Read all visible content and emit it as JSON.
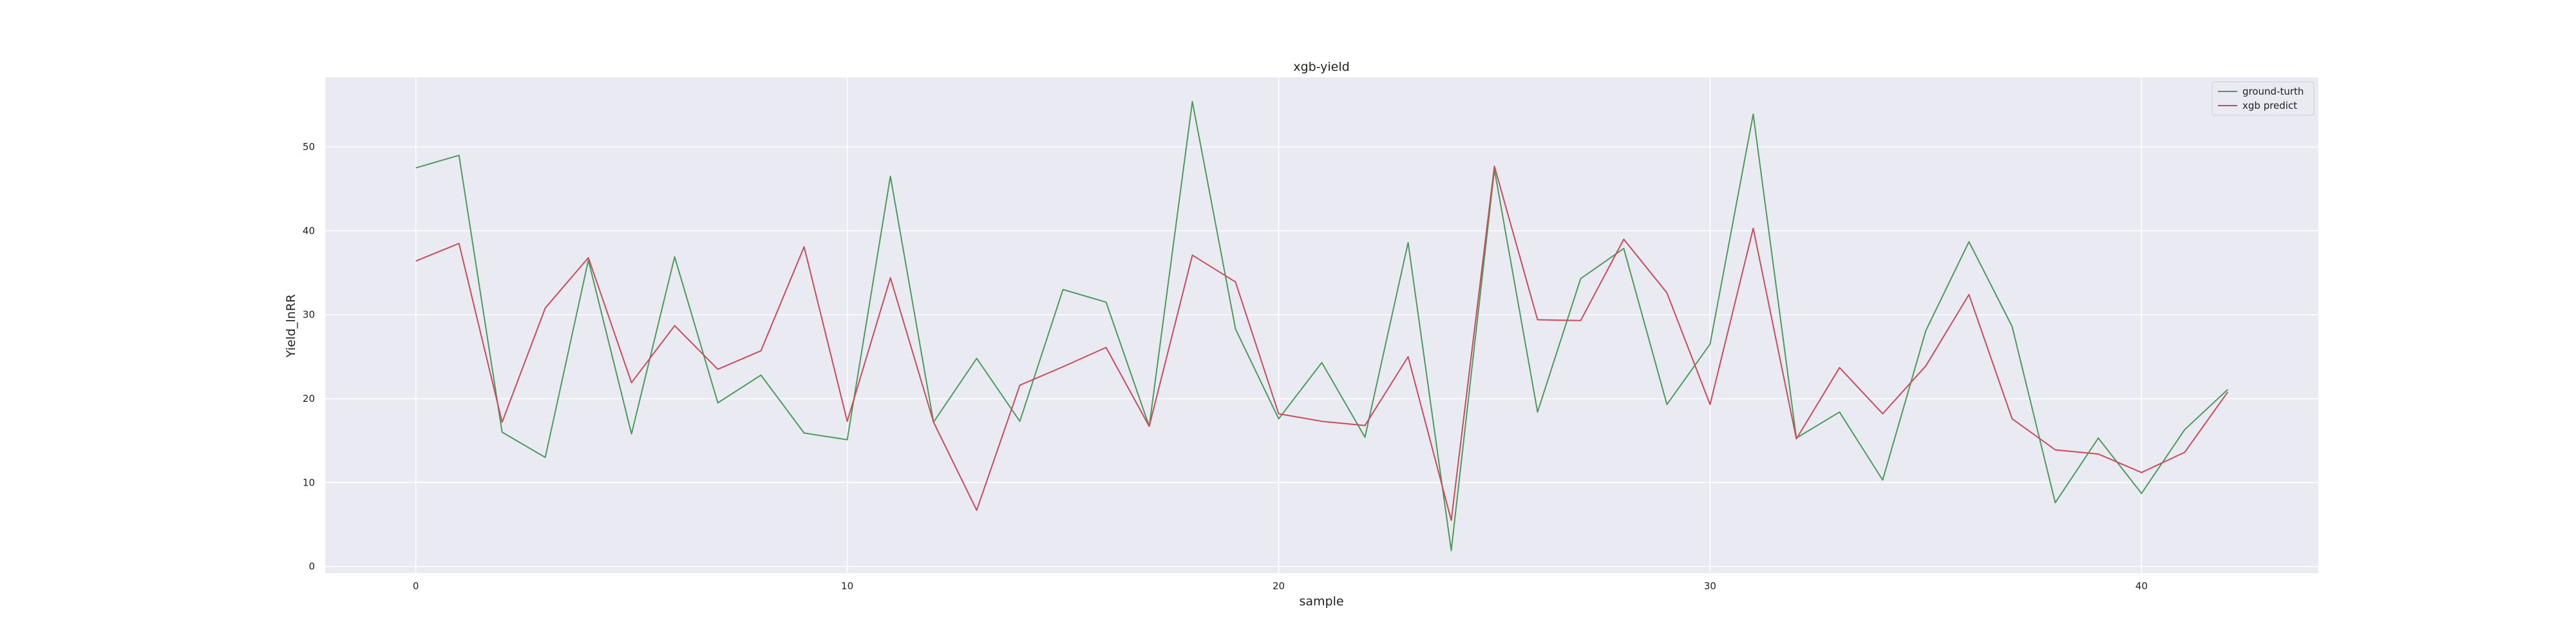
{
  "chart_data": {
    "type": "line",
    "title": "xgb-yield",
    "xlabel": "sample",
    "ylabel": "Yield_lnRR",
    "xlim": [
      -2.1,
      44.1
    ],
    "ylim": [
      -0.8,
      58.3
    ],
    "xticks": [
      0,
      10,
      20,
      30,
      40
    ],
    "yticks": [
      0,
      10,
      20,
      30,
      40,
      50
    ],
    "grid": true,
    "legend_position": "top-right",
    "x": [
      0,
      1,
      2,
      3,
      4,
      5,
      6,
      7,
      8,
      9,
      10,
      11,
      12,
      13,
      14,
      15,
      16,
      17,
      18,
      19,
      20,
      21,
      22,
      23,
      24,
      25,
      26,
      27,
      28,
      29,
      30,
      31,
      32,
      33,
      34,
      35,
      36,
      37,
      38,
      39,
      40,
      41,
      42
    ],
    "series": [
      {
        "name": "ground-turth",
        "color": "#4c9a5c",
        "values": [
          47.5,
          49,
          16,
          13,
          36.5,
          15.8,
          36.9,
          19.5,
          22.8,
          15.9,
          15.1,
          46.5,
          17.2,
          24.8,
          17.3,
          33,
          31.5,
          16.7,
          55.4,
          28.3,
          17.6,
          24.3,
          15.4,
          38.6,
          1.9,
          47.3,
          18.4,
          34.3,
          37.9,
          19.3,
          26.5,
          53.9,
          15.3,
          18.4,
          10.3,
          28.1,
          38.7,
          28.6,
          7.6,
          15.3,
          8.7,
          16.3,
          21.1
        ]
      },
      {
        "name": "xgb predict",
        "color": "#c84b5a",
        "values": [
          36.4,
          38.5,
          17.2,
          30.8,
          36.8,
          21.9,
          28.7,
          23.5,
          25.7,
          38.1,
          17.3,
          34.4,
          17.2,
          6.7,
          21.6,
          23.8,
          26.1,
          16.7,
          37.1,
          33.9,
          18.2,
          17.3,
          16.8,
          25,
          5.5,
          47.7,
          29.4,
          29.3,
          39,
          32.6,
          19.3,
          40.3,
          15.2,
          23.7,
          18.2,
          23.9,
          32.4,
          17.6,
          13.9,
          13.4,
          11.2,
          13.6,
          20.8
        ]
      }
    ]
  },
  "colors": {
    "plot_background": "#eaeaf2",
    "grid": "#ffffff"
  }
}
